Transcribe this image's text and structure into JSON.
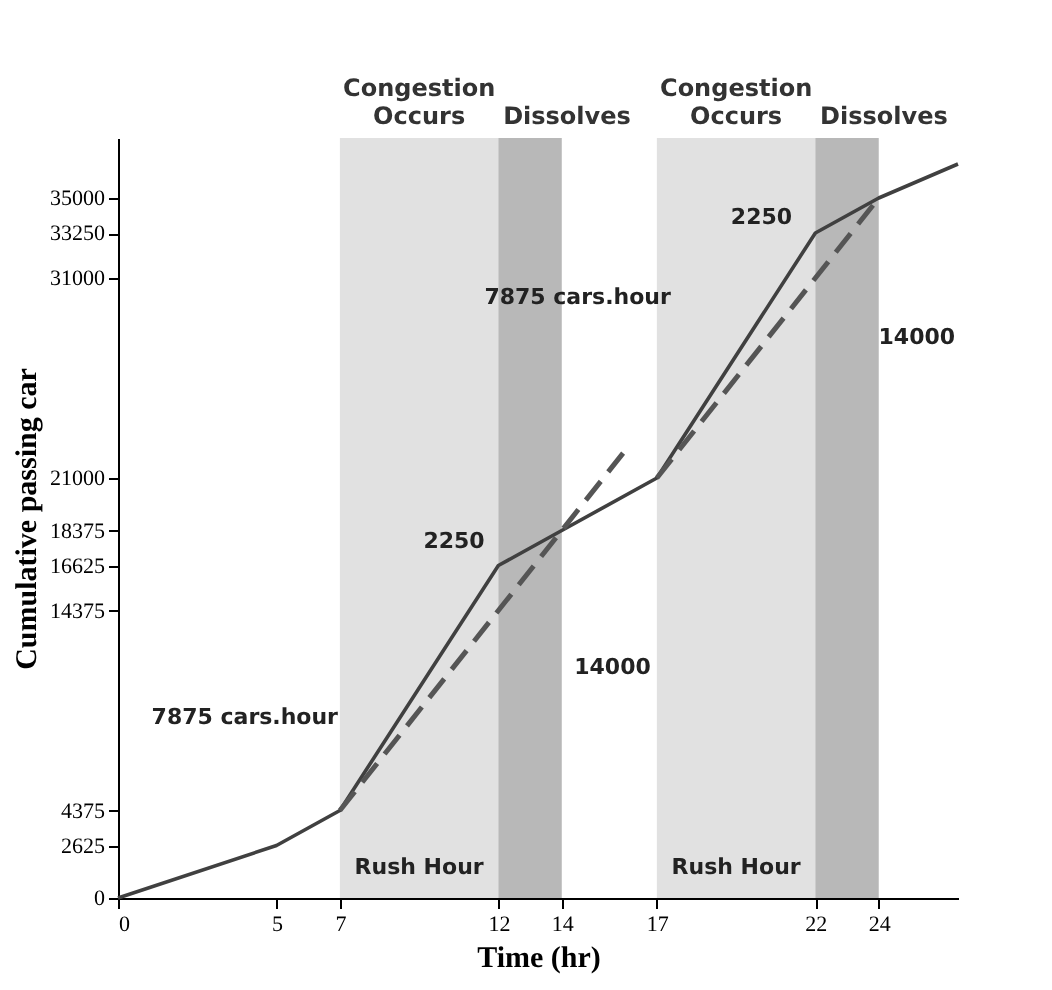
{
  "chart_data": {
    "type": "line",
    "xlabel": "Time (hr)",
    "ylabel": "Cumulative passing car",
    "xlim": [
      0,
      26.5
    ],
    "ylim": [
      0,
      38000
    ],
    "xticks": [
      0,
      5,
      7,
      12,
      14,
      17,
      22,
      24
    ],
    "yticks": [
      0,
      2625,
      4375,
      14375,
      16625,
      18375,
      21000,
      31000,
      33250,
      35000
    ],
    "grid": false,
    "series": [
      {
        "color": "#404040",
        "line_style": "solid",
        "x": [
          0,
          5,
          7,
          12,
          14,
          17,
          22,
          24,
          26.5
        ],
        "values": [
          0,
          2625,
          4375,
          16625,
          18375,
          21000,
          33250,
          35000,
          36700
        ]
      },
      {
        "color": "#555555",
        "line_style": "dashed",
        "x": [
          7,
          12,
          14,
          16
        ],
        "values": [
          4375,
          14375,
          18375,
          22375
        ]
      },
      {
        "color": "#555555",
        "line_style": "dashed",
        "x": [
          17,
          22,
          24
        ],
        "values": [
          21000,
          31000,
          35000
        ]
      }
    ],
    "bands": [
      {
        "axis": "x",
        "from": 7,
        "to": 12,
        "label": "Congestion Occurs",
        "color": "#d9d9d9"
      },
      {
        "axis": "x",
        "from": 12,
        "to": 14,
        "label": "Dissolves",
        "color": "#a6a6a6"
      },
      {
        "axis": "x",
        "from": 17,
        "to": 22,
        "label": "Congestion Occurs",
        "color": "#d9d9d9"
      },
      {
        "axis": "x",
        "from": 22,
        "to": 24,
        "label": "Dissolves",
        "color": "#a6a6a6"
      }
    ],
    "annotations": [
      "Rush Hour",
      "Rush Hour",
      "2250",
      "7875 cars.hour",
      "14000",
      "14000",
      "2250",
      "7875 cars.hour"
    ]
  }
}
